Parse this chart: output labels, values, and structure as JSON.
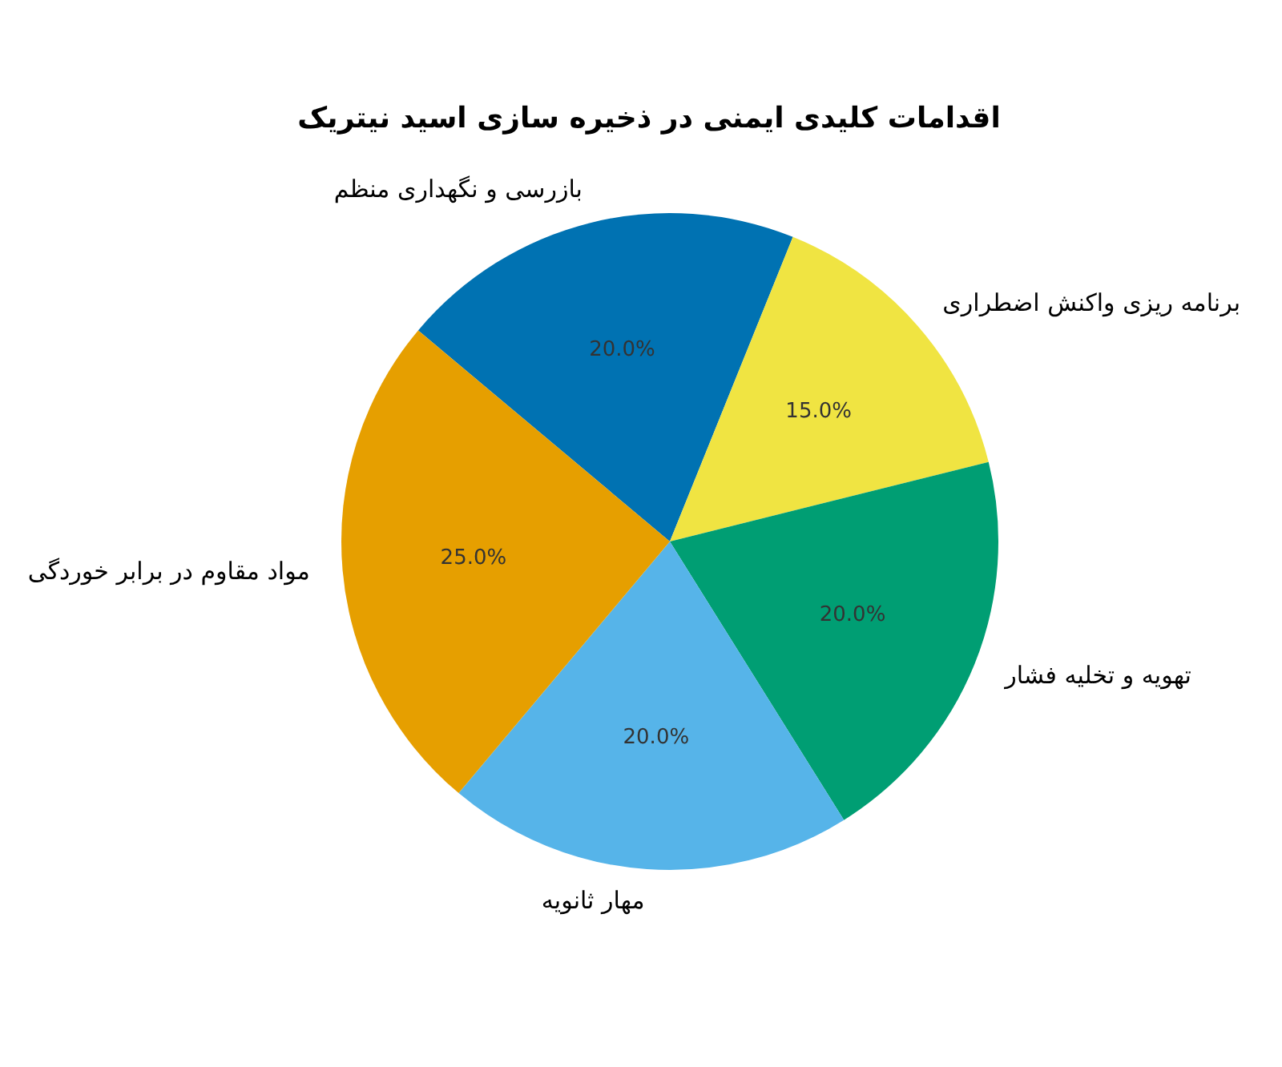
{
  "chart_data": {
    "type": "pie",
    "title": "اقدامات کلیدی ایمنی در ذخیره سازی اسید نیتریک",
    "categories": [
      "بازرسی و نگهداری منظم",
      "برنامه ریزی واکنش اضطراری",
      "تهویه و تخلیه فشار",
      "مهار ثانویه",
      "مواد مقاوم در برابر خوردگی"
    ],
    "values": [
      20,
      15,
      20,
      20,
      25
    ],
    "colors": [
      "#0072b2",
      "#f0e442",
      "#009e73",
      "#56b4e9",
      "#e69f00"
    ],
    "value_labels": [
      "20.0%",
      "15.0%",
      "20.0%",
      "20.0%",
      "25.0%"
    ],
    "legend": false
  }
}
